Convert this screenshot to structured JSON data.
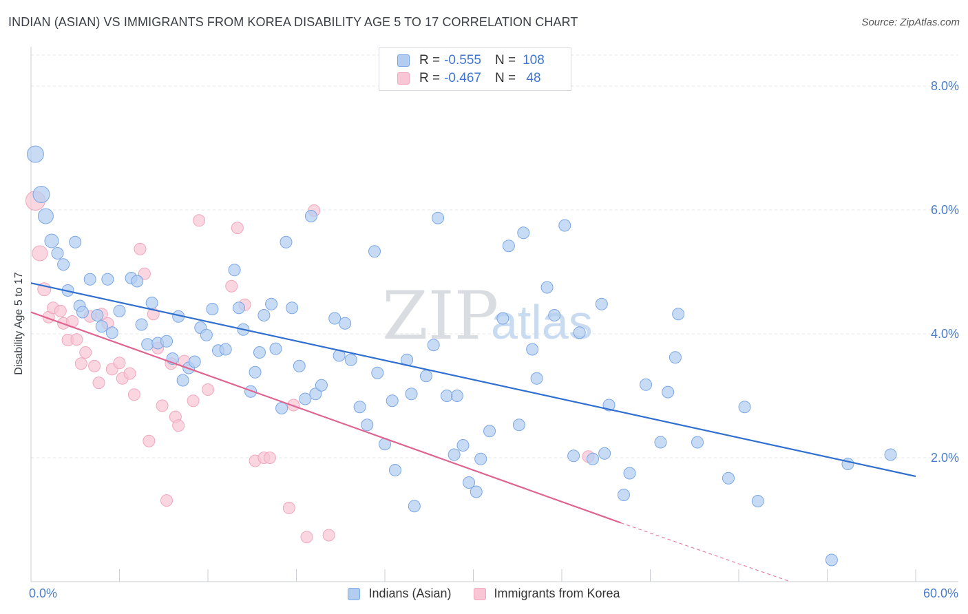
{
  "title": "INDIAN (ASIAN) VS IMMIGRANTS FROM KOREA DISABILITY AGE 5 TO 17 CORRELATION CHART",
  "source": "Source: ZipAtlas.com",
  "watermark": {
    "part1": "ZIP",
    "part2": "atlas"
  },
  "legend": {
    "rows": [
      {
        "r_label": "R =",
        "r_value": "-0.555",
        "n_label": "N =",
        "n_value": "108",
        "color": "#7aa7e6"
      },
      {
        "r_label": "R =",
        "r_value": "-0.467",
        "n_label": "N =",
        "n_value": " 48",
        "color": "#f2a7bd"
      }
    ]
  },
  "x_min_label": "0.0%",
  "x_max_label": "60.0%",
  "chart_data": {
    "type": "scatter",
    "title": "INDIAN (ASIAN) VS IMMIGRANTS FROM KOREA DISABILITY AGE 5 TO 17 CORRELATION CHART",
    "xlabel": "",
    "ylabel": "Disability Age 5 to 17",
    "xlim": [
      0,
      60
    ],
    "ylim": [
      0,
      8.5
    ],
    "y_ticks": [
      {
        "value": 2,
        "label": "2.0%"
      },
      {
        "value": 4,
        "label": "4.0%"
      },
      {
        "value": 6,
        "label": "6.0%"
      },
      {
        "value": 8,
        "label": "8.0%"
      }
    ],
    "x_ticks": [
      0,
      6,
      12,
      18,
      24,
      30,
      36,
      42,
      48,
      54,
      60
    ],
    "series": [
      {
        "name": "Indians (Asian)",
        "color": "#7aa7e6",
        "fill": "#b3cdf1",
        "trend": {
          "x0": 0,
          "y0": 4.82,
          "x1": 60,
          "y1": 1.7,
          "color": "#2f6fd0"
        },
        "points": [
          [
            0.3,
            6.9
          ],
          [
            0.7,
            6.25
          ],
          [
            1.0,
            5.9
          ],
          [
            1.4,
            5.5
          ],
          [
            1.8,
            5.3
          ],
          [
            2.2,
            5.12
          ],
          [
            2.5,
            4.7
          ],
          [
            3.0,
            5.48
          ],
          [
            3.3,
            4.45
          ],
          [
            3.5,
            4.35
          ],
          [
            4.0,
            4.88
          ],
          [
            4.5,
            4.3
          ],
          [
            4.8,
            4.12
          ],
          [
            5.2,
            4.88
          ],
          [
            5.5,
            4.02
          ],
          [
            6.0,
            4.37
          ],
          [
            6.8,
            4.9
          ],
          [
            7.2,
            4.85
          ],
          [
            7.5,
            4.15
          ],
          [
            7.9,
            3.83
          ],
          [
            8.2,
            4.5
          ],
          [
            8.6,
            3.85
          ],
          [
            9.2,
            3.88
          ],
          [
            9.6,
            3.6
          ],
          [
            10.0,
            4.28
          ],
          [
            10.3,
            3.25
          ],
          [
            10.7,
            3.45
          ],
          [
            11.1,
            3.55
          ],
          [
            11.5,
            4.1
          ],
          [
            11.9,
            3.98
          ],
          [
            12.3,
            4.4
          ],
          [
            12.7,
            3.73
          ],
          [
            13.2,
            3.75
          ],
          [
            13.8,
            5.03
          ],
          [
            14.1,
            4.42
          ],
          [
            14.4,
            4.07
          ],
          [
            14.9,
            3.07
          ],
          [
            15.2,
            3.38
          ],
          [
            15.5,
            3.7
          ],
          [
            15.8,
            4.3
          ],
          [
            16.3,
            4.48
          ],
          [
            16.6,
            3.76
          ],
          [
            17.0,
            2.8
          ],
          [
            17.3,
            5.48
          ],
          [
            17.7,
            4.42
          ],
          [
            18.2,
            3.48
          ],
          [
            18.6,
            2.95
          ],
          [
            19.0,
            5.9
          ],
          [
            19.3,
            3.03
          ],
          [
            19.7,
            3.17
          ],
          [
            20.6,
            4.25
          ],
          [
            20.9,
            3.65
          ],
          [
            21.3,
            4.17
          ],
          [
            21.7,
            3.58
          ],
          [
            22.3,
            2.82
          ],
          [
            22.8,
            2.53
          ],
          [
            23.3,
            5.33
          ],
          [
            23.5,
            3.37
          ],
          [
            24.0,
            2.22
          ],
          [
            24.5,
            2.92
          ],
          [
            24.7,
            1.8
          ],
          [
            25.5,
            3.58
          ],
          [
            25.8,
            3.03
          ],
          [
            26.0,
            1.22
          ],
          [
            26.8,
            3.32
          ],
          [
            27.3,
            3.82
          ],
          [
            27.6,
            5.87
          ],
          [
            28.2,
            3.0
          ],
          [
            28.7,
            2.05
          ],
          [
            28.9,
            3.0
          ],
          [
            29.3,
            2.2
          ],
          [
            29.7,
            1.6
          ],
          [
            30.2,
            1.45
          ],
          [
            30.5,
            1.98
          ],
          [
            31.1,
            2.43
          ],
          [
            32.0,
            4.25
          ],
          [
            32.4,
            5.42
          ],
          [
            33.1,
            2.53
          ],
          [
            33.4,
            5.63
          ],
          [
            34.0,
            3.75
          ],
          [
            34.3,
            3.28
          ],
          [
            35.0,
            4.75
          ],
          [
            35.5,
            4.3
          ],
          [
            36.2,
            5.75
          ],
          [
            36.8,
            2.03
          ],
          [
            37.2,
            4.02
          ],
          [
            38.1,
            1.98
          ],
          [
            38.7,
            4.48
          ],
          [
            38.9,
            2.07
          ],
          [
            39.2,
            2.85
          ],
          [
            40.2,
            1.4
          ],
          [
            40.6,
            1.75
          ],
          [
            41.7,
            3.18
          ],
          [
            42.7,
            2.25
          ],
          [
            43.2,
            3.06
          ],
          [
            43.7,
            3.62
          ],
          [
            43.9,
            4.32
          ],
          [
            45.2,
            2.25
          ],
          [
            47.3,
            1.67
          ],
          [
            48.4,
            2.82
          ],
          [
            49.3,
            1.3
          ],
          [
            54.3,
            0.35
          ],
          [
            55.4,
            1.9
          ],
          [
            58.3,
            2.05
          ]
        ]
      },
      {
        "name": "Immigrants from Korea",
        "color": "#f2a7bd",
        "fill": "#f8c6d5",
        "trend": {
          "x0": 0,
          "y0": 4.35,
          "x1": 40,
          "y1": 0.95,
          "color": "#e0628e",
          "dash_to": {
            "x": 51.5,
            "y": 0.0
          }
        },
        "points": [
          [
            0.3,
            6.15
          ],
          [
            0.6,
            5.3
          ],
          [
            0.9,
            4.72
          ],
          [
            1.2,
            4.27
          ],
          [
            1.5,
            4.42
          ],
          [
            2.0,
            4.37
          ],
          [
            2.2,
            4.17
          ],
          [
            2.5,
            3.9
          ],
          [
            2.8,
            4.2
          ],
          [
            3.1,
            3.91
          ],
          [
            3.4,
            3.52
          ],
          [
            3.7,
            3.7
          ],
          [
            4.0,
            4.28
          ],
          [
            4.3,
            3.48
          ],
          [
            4.6,
            3.21
          ],
          [
            4.8,
            4.32
          ],
          [
            5.2,
            4.17
          ],
          [
            5.5,
            3.43
          ],
          [
            6.0,
            3.53
          ],
          [
            6.2,
            3.28
          ],
          [
            6.7,
            3.36
          ],
          [
            7.0,
            3.02
          ],
          [
            7.4,
            5.37
          ],
          [
            7.7,
            4.97
          ],
          [
            8.0,
            2.27
          ],
          [
            8.3,
            4.32
          ],
          [
            8.6,
            3.77
          ],
          [
            8.9,
            2.84
          ],
          [
            9.2,
            1.31
          ],
          [
            9.5,
            3.52
          ],
          [
            9.8,
            2.66
          ],
          [
            10.0,
            2.52
          ],
          [
            10.4,
            3.56
          ],
          [
            11.0,
            2.92
          ],
          [
            11.4,
            5.83
          ],
          [
            12.0,
            3.1
          ],
          [
            13.6,
            4.77
          ],
          [
            14.0,
            5.71
          ],
          [
            14.5,
            4.47
          ],
          [
            15.2,
            1.95
          ],
          [
            15.8,
            2.0
          ],
          [
            16.2,
            2.0
          ],
          [
            17.5,
            1.19
          ],
          [
            17.8,
            2.85
          ],
          [
            18.7,
            0.72
          ],
          [
            19.2,
            5.99
          ],
          [
            20.2,
            0.75
          ],
          [
            37.8,
            2.02
          ]
        ]
      }
    ]
  }
}
